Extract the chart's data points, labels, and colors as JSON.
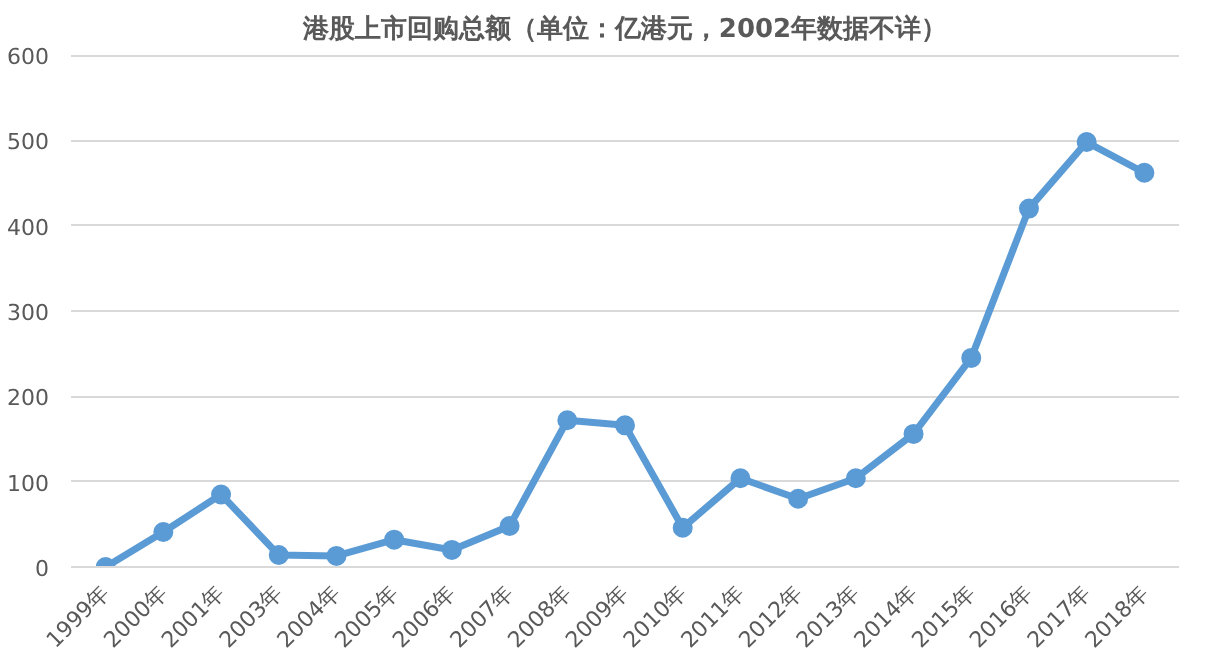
{
  "chart_data": {
    "type": "line",
    "title": "港股上市回购总额（单位：亿港元，2002年数据不详）",
    "categories": [
      "1999年",
      "2000年",
      "2001年",
      "2003年",
      "2004年",
      "2005年",
      "2006年",
      "2007年",
      "2008年",
      "2009年",
      "2010年",
      "2011年",
      "2012年",
      "2013年",
      "2014年",
      "2015年",
      "2016年",
      "2017年",
      "2018年"
    ],
    "series": [
      {
        "color": "#5b9bd5",
        "values": [
          0,
          41,
          85,
          14,
          13,
          32,
          20,
          48,
          172,
          166,
          46,
          104,
          80,
          104,
          156,
          245,
          420,
          498,
          462
        ]
      }
    ],
    "ylim": [
      0,
      600
    ],
    "yticks": [
      0,
      100,
      200,
      300,
      400,
      500,
      600
    ],
    "grid": "y",
    "marker": "circle",
    "line_style": "solid"
  }
}
